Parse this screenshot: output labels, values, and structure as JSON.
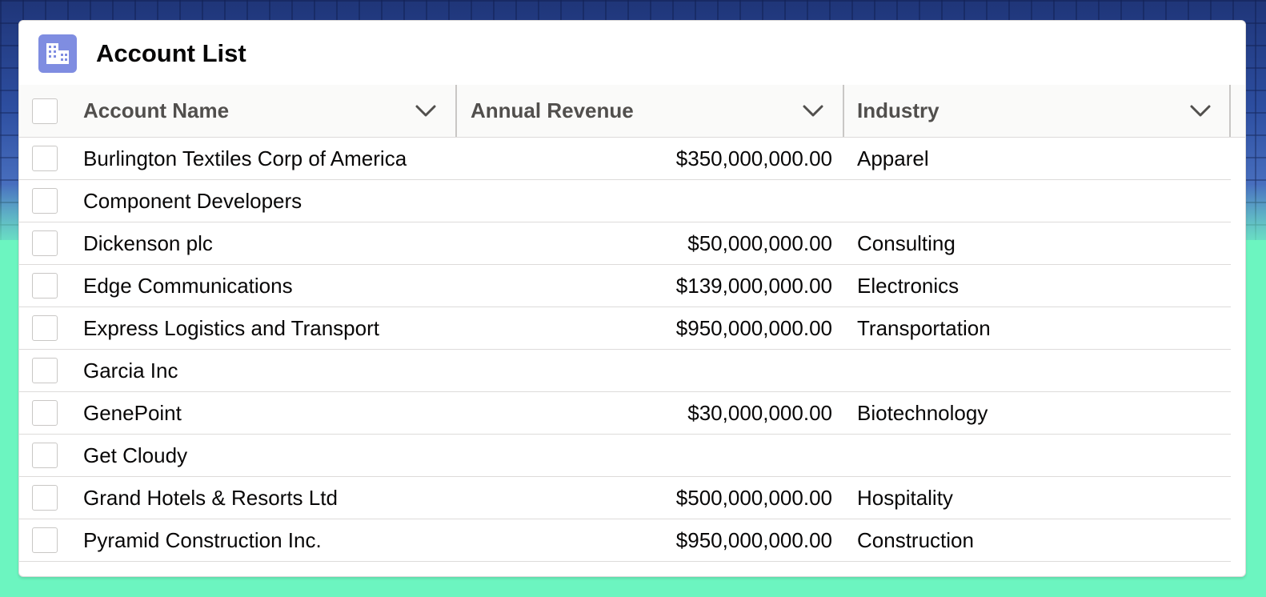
{
  "card": {
    "title": "Account List",
    "icon": "account-icon"
  },
  "columns": [
    {
      "label": "Account Name",
      "icon": "chevron-down-icon"
    },
    {
      "label": "Annual Revenue",
      "icon": "chevron-down-icon"
    },
    {
      "label": "Industry",
      "icon": "chevron-down-icon"
    }
  ],
  "rows": [
    {
      "name": "Burlington Textiles Corp of America",
      "revenue": "$350,000,000.00",
      "industry": "Apparel"
    },
    {
      "name": "Component Developers",
      "revenue": "",
      "industry": ""
    },
    {
      "name": "Dickenson plc",
      "revenue": "$50,000,000.00",
      "industry": "Consulting"
    },
    {
      "name": "Edge Communications",
      "revenue": "$139,000,000.00",
      "industry": "Electronics"
    },
    {
      "name": "Express Logistics and Transport",
      "revenue": "$950,000,000.00",
      "industry": "Transportation"
    },
    {
      "name": "Garcia Inc",
      "revenue": "",
      "industry": ""
    },
    {
      "name": "GenePoint",
      "revenue": "$30,000,000.00",
      "industry": "Biotechnology"
    },
    {
      "name": "Get Cloudy",
      "revenue": "",
      "industry": ""
    },
    {
      "name": "Grand Hotels & Resorts Ltd",
      "revenue": "$500,000,000.00",
      "industry": "Hospitality"
    },
    {
      "name": "Pyramid Construction Inc.",
      "revenue": "$950,000,000.00",
      "industry": "Construction"
    }
  ],
  "colors": {
    "accent_icon_bg": "#7f8de1",
    "page_bg": "#6cf5c0"
  }
}
